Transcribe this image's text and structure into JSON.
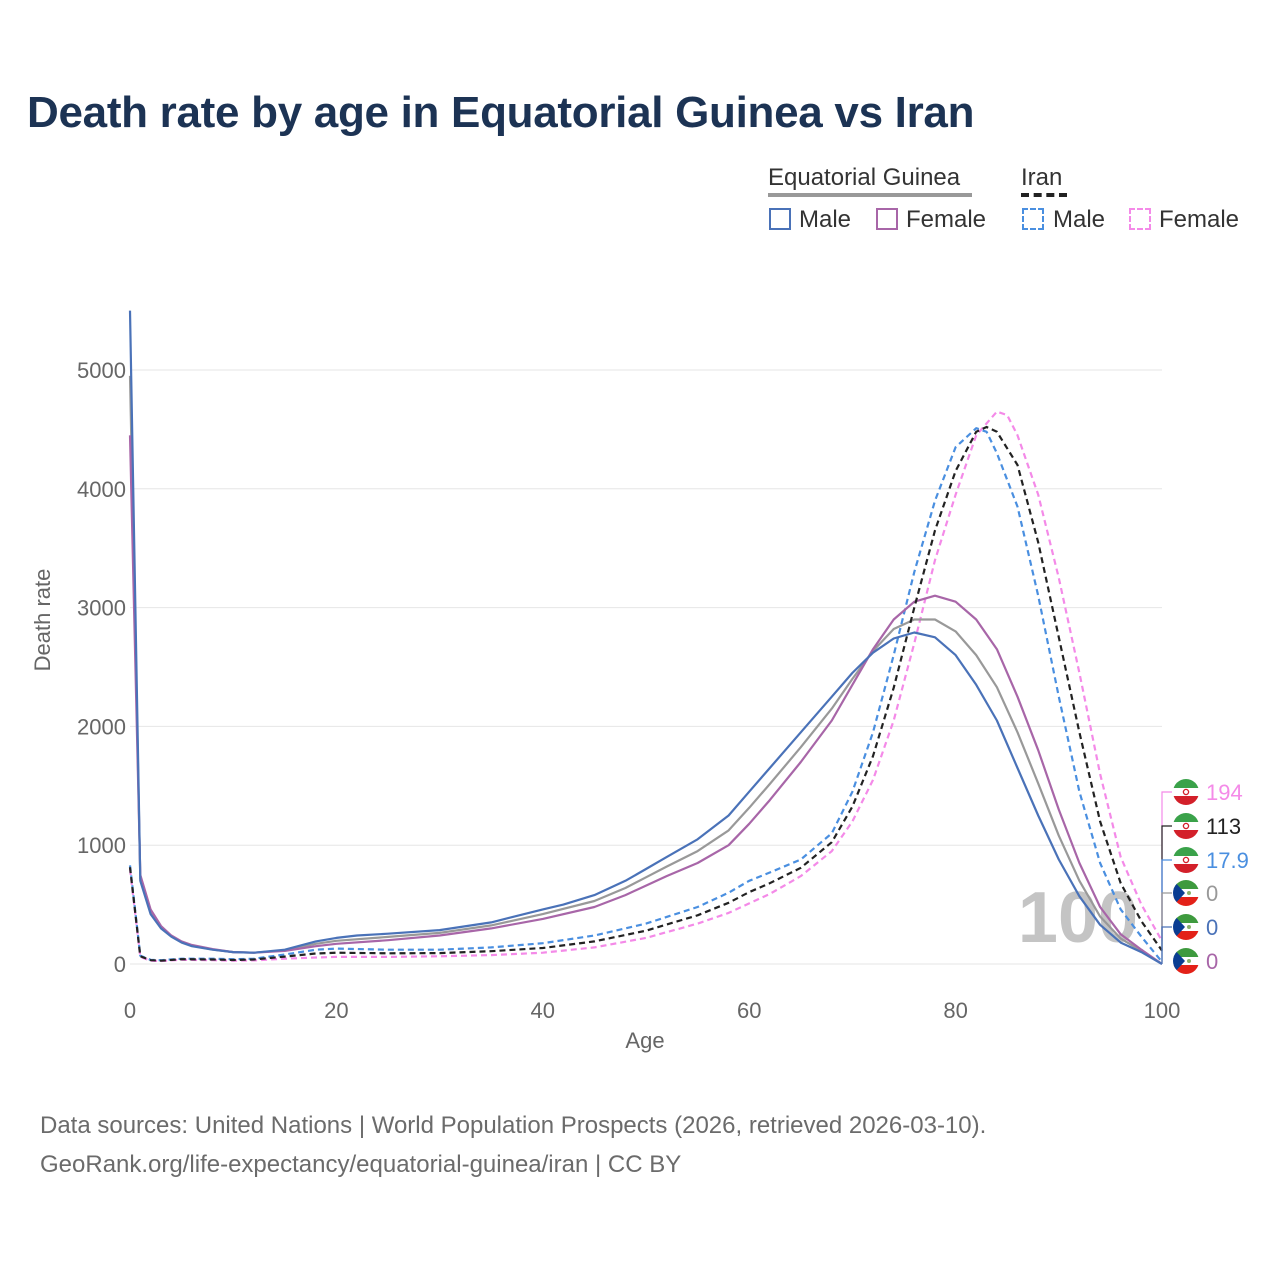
{
  "title": "Death rate by age in Equatorial Guinea vs Iran",
  "legend": {
    "groups": [
      {
        "name": "Equatorial Guinea",
        "items": [
          "Male",
          "Female"
        ]
      },
      {
        "name": "Iran",
        "items": [
          "Male",
          "Female"
        ]
      }
    ]
  },
  "watermark": "100",
  "sources": {
    "line1": "Data sources: United Nations | World Population Prospects (2026, retrieved 2026-03-10).",
    "line2": "GeoRank.org/life-expectancy/equatorial-guinea/iran | CC BY"
  },
  "colors": {
    "eg_male": "#4a72b8",
    "eg_female": "#a866a8",
    "eg_total": "#999999",
    "iran_male": "#4a8fe0",
    "iran_female": "#f48ae8",
    "iran_total": "#222222",
    "title": "#1c3354",
    "grid": "#e6e6e6",
    "axis_text": "#666666"
  },
  "chart_data": {
    "type": "line",
    "title": "Death rate by age in Equatorial Guinea vs Iran",
    "xlabel": "Age",
    "ylabel": "Death rate",
    "xlim": [
      0,
      100
    ],
    "ylim": [
      0,
      5500
    ],
    "xticks": [
      0,
      20,
      40,
      60,
      80,
      100
    ],
    "yticks": [
      0,
      1000,
      2000,
      3000,
      4000,
      5000
    ],
    "grid": true,
    "series": [
      {
        "id": "eg_male",
        "name": "Equatorial Guinea Male",
        "country": "Equatorial Guinea",
        "sex": "Male",
        "dashed": false,
        "points": [
          [
            0,
            5500
          ],
          [
            1,
            700
          ],
          [
            2,
            420
          ],
          [
            3,
            300
          ],
          [
            4,
            230
          ],
          [
            5,
            180
          ],
          [
            6,
            150
          ],
          [
            8,
            120
          ],
          [
            10,
            100
          ],
          [
            12,
            95
          ],
          [
            15,
            120
          ],
          [
            18,
            190
          ],
          [
            20,
            220
          ],
          [
            22,
            240
          ],
          [
            25,
            255
          ],
          [
            30,
            285
          ],
          [
            35,
            350
          ],
          [
            40,
            460
          ],
          [
            42,
            500
          ],
          [
            45,
            580
          ],
          [
            48,
            700
          ],
          [
            50,
            800
          ],
          [
            52,
            900
          ],
          [
            55,
            1050
          ],
          [
            58,
            1250
          ],
          [
            60,
            1450
          ],
          [
            62,
            1650
          ],
          [
            65,
            1950
          ],
          [
            68,
            2250
          ],
          [
            70,
            2450
          ],
          [
            72,
            2620
          ],
          [
            74,
            2740
          ],
          [
            76,
            2790
          ],
          [
            78,
            2750
          ],
          [
            80,
            2600
          ],
          [
            82,
            2350
          ],
          [
            84,
            2050
          ],
          [
            86,
            1650
          ],
          [
            88,
            1250
          ],
          [
            90,
            880
          ],
          [
            92,
            570
          ],
          [
            94,
            330
          ],
          [
            96,
            180
          ],
          [
            98,
            100
          ],
          [
            100,
            0
          ]
        ],
        "end_value": "0"
      },
      {
        "id": "eg_female",
        "name": "Equatorial Guinea Female",
        "country": "Equatorial Guinea",
        "sex": "Female",
        "dashed": false,
        "points": [
          [
            0,
            4450
          ],
          [
            1,
            750
          ],
          [
            2,
            460
          ],
          [
            3,
            320
          ],
          [
            4,
            240
          ],
          [
            5,
            190
          ],
          [
            6,
            160
          ],
          [
            8,
            125
          ],
          [
            10,
            100
          ],
          [
            12,
            95
          ],
          [
            15,
            110
          ],
          [
            18,
            150
          ],
          [
            20,
            170
          ],
          [
            25,
            200
          ],
          [
            30,
            240
          ],
          [
            35,
            300
          ],
          [
            40,
            380
          ],
          [
            45,
            480
          ],
          [
            48,
            580
          ],
          [
            50,
            660
          ],
          [
            52,
            740
          ],
          [
            55,
            850
          ],
          [
            58,
            1000
          ],
          [
            60,
            1180
          ],
          [
            62,
            1380
          ],
          [
            65,
            1700
          ],
          [
            68,
            2050
          ],
          [
            70,
            2350
          ],
          [
            72,
            2650
          ],
          [
            74,
            2900
          ],
          [
            76,
            3050
          ],
          [
            78,
            3100
          ],
          [
            80,
            3050
          ],
          [
            82,
            2900
          ],
          [
            84,
            2650
          ],
          [
            86,
            2250
          ],
          [
            88,
            1800
          ],
          [
            90,
            1300
          ],
          [
            92,
            850
          ],
          [
            94,
            480
          ],
          [
            96,
            250
          ],
          [
            98,
            120
          ],
          [
            100,
            0
          ]
        ],
        "end_value": "0"
      },
      {
        "id": "eg_total",
        "name": "Equatorial Guinea",
        "country": "Equatorial Guinea",
        "sex": "Total",
        "dashed": false,
        "points": [
          [
            0,
            4950
          ],
          [
            1,
            720
          ],
          [
            2,
            440
          ],
          [
            3,
            310
          ],
          [
            4,
            235
          ],
          [
            5,
            185
          ],
          [
            6,
            155
          ],
          [
            8,
            122
          ],
          [
            10,
            100
          ],
          [
            12,
            95
          ],
          [
            15,
            115
          ],
          [
            18,
            170
          ],
          [
            20,
            195
          ],
          [
            25,
            228
          ],
          [
            30,
            262
          ],
          [
            35,
            325
          ],
          [
            40,
            420
          ],
          [
            45,
            530
          ],
          [
            48,
            640
          ],
          [
            50,
            730
          ],
          [
            52,
            820
          ],
          [
            55,
            950
          ],
          [
            58,
            1125
          ],
          [
            60,
            1315
          ],
          [
            62,
            1515
          ],
          [
            65,
            1825
          ],
          [
            68,
            2150
          ],
          [
            70,
            2400
          ],
          [
            72,
            2635
          ],
          [
            74,
            2820
          ],
          [
            76,
            2900
          ],
          [
            78,
            2900
          ],
          [
            80,
            2800
          ],
          [
            82,
            2600
          ],
          [
            84,
            2330
          ],
          [
            86,
            1950
          ],
          [
            88,
            1520
          ],
          [
            90,
            1080
          ],
          [
            92,
            700
          ],
          [
            94,
            400
          ],
          [
            96,
            215
          ],
          [
            98,
            110
          ],
          [
            100,
            0
          ]
        ],
        "end_value": "0"
      },
      {
        "id": "iran_male",
        "name": "Iran Male",
        "country": "Iran",
        "sex": "Male",
        "dashed": true,
        "points": [
          [
            0,
            830
          ],
          [
            1,
            70
          ],
          [
            2,
            35
          ],
          [
            3,
            32
          ],
          [
            5,
            45
          ],
          [
            8,
            45
          ],
          [
            10,
            40
          ],
          [
            12,
            45
          ],
          [
            15,
            80
          ],
          [
            18,
            120
          ],
          [
            20,
            130
          ],
          [
            25,
            120
          ],
          [
            30,
            120
          ],
          [
            35,
            140
          ],
          [
            40,
            175
          ],
          [
            45,
            240
          ],
          [
            50,
            340
          ],
          [
            55,
            480
          ],
          [
            58,
            600
          ],
          [
            60,
            700
          ],
          [
            62,
            770
          ],
          [
            65,
            880
          ],
          [
            68,
            1100
          ],
          [
            70,
            1450
          ],
          [
            72,
            1950
          ],
          [
            74,
            2600
          ],
          [
            76,
            3300
          ],
          [
            78,
            3900
          ],
          [
            80,
            4350
          ],
          [
            82,
            4510
          ],
          [
            83,
            4480
          ],
          [
            84,
            4300
          ],
          [
            86,
            3850
          ],
          [
            88,
            3100
          ],
          [
            90,
            2250
          ],
          [
            92,
            1450
          ],
          [
            94,
            850
          ],
          [
            96,
            460
          ],
          [
            98,
            230
          ],
          [
            100,
            18
          ]
        ],
        "end_value": "17.9"
      },
      {
        "id": "iran_female",
        "name": "Iran Female",
        "country": "Iran",
        "sex": "Female",
        "dashed": true,
        "points": [
          [
            0,
            800
          ],
          [
            1,
            60
          ],
          [
            2,
            28
          ],
          [
            3,
            25
          ],
          [
            5,
            35
          ],
          [
            8,
            32
          ],
          [
            10,
            28
          ],
          [
            12,
            30
          ],
          [
            15,
            45
          ],
          [
            18,
            55
          ],
          [
            20,
            60
          ],
          [
            25,
            60
          ],
          [
            30,
            65
          ],
          [
            35,
            75
          ],
          [
            40,
            95
          ],
          [
            45,
            140
          ],
          [
            50,
            220
          ],
          [
            55,
            340
          ],
          [
            58,
            430
          ],
          [
            60,
            510
          ],
          [
            62,
            590
          ],
          [
            65,
            740
          ],
          [
            68,
            950
          ],
          [
            70,
            1200
          ],
          [
            72,
            1550
          ],
          [
            74,
            2050
          ],
          [
            76,
            2700
          ],
          [
            78,
            3400
          ],
          [
            80,
            3950
          ],
          [
            82,
            4450
          ],
          [
            84,
            4650
          ],
          [
            85,
            4620
          ],
          [
            86,
            4450
          ],
          [
            88,
            3950
          ],
          [
            90,
            3250
          ],
          [
            92,
            2450
          ],
          [
            94,
            1600
          ],
          [
            96,
            900
          ],
          [
            98,
            500
          ],
          [
            100,
            194
          ]
        ],
        "end_value": "194"
      },
      {
        "id": "iran_total",
        "name": "Iran",
        "country": "Iran",
        "sex": "Total",
        "dashed": true,
        "points": [
          [
            0,
            815
          ],
          [
            1,
            65
          ],
          [
            2,
            32
          ],
          [
            3,
            28
          ],
          [
            5,
            40
          ],
          [
            8,
            38
          ],
          [
            10,
            34
          ],
          [
            12,
            38
          ],
          [
            15,
            62
          ],
          [
            18,
            88
          ],
          [
            20,
            95
          ],
          [
            25,
            90
          ],
          [
            30,
            92
          ],
          [
            35,
            108
          ],
          [
            40,
            135
          ],
          [
            45,
            190
          ],
          [
            50,
            280
          ],
          [
            55,
            410
          ],
          [
            58,
            515
          ],
          [
            60,
            605
          ],
          [
            62,
            680
          ],
          [
            65,
            810
          ],
          [
            68,
            1025
          ],
          [
            70,
            1325
          ],
          [
            72,
            1750
          ],
          [
            74,
            2325
          ],
          [
            76,
            3000
          ],
          [
            78,
            3650
          ],
          [
            80,
            4150
          ],
          [
            82,
            4480
          ],
          [
            83,
            4520
          ],
          [
            84,
            4480
          ],
          [
            86,
            4200
          ],
          [
            88,
            3550
          ],
          [
            90,
            2750
          ],
          [
            92,
            1950
          ],
          [
            94,
            1200
          ],
          [
            96,
            680
          ],
          [
            98,
            360
          ],
          [
            100,
            113
          ]
        ],
        "end_value": "113"
      }
    ],
    "end_labels": [
      {
        "series": "iran_female",
        "text": "194"
      },
      {
        "series": "iran_total",
        "text": "113"
      },
      {
        "series": "iran_male",
        "text": "17.9"
      },
      {
        "series": "eg_total",
        "text": "0"
      },
      {
        "series": "eg_male",
        "text": "0"
      },
      {
        "series": "eg_female",
        "text": "0"
      }
    ]
  }
}
